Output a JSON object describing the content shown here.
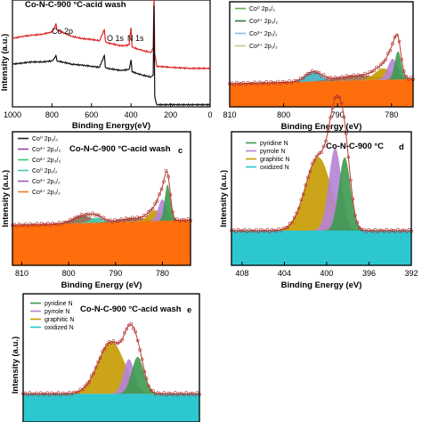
{
  "chart_data": [
    {
      "id": "a",
      "type": "line",
      "title": "Co-N-C-900 °C-acid wash",
      "xlabel": "Binding Energy(eV)",
      "ylabel": "Intensity (a.u.)",
      "xlim": [
        1000,
        0
      ],
      "xticks": [
        "1000",
        "800",
        "600",
        "400",
        "200",
        "0"
      ],
      "colors": {
        "top": "#dd2222",
        "bottom": "#111111"
      },
      "annotations": [
        "Co 2p",
        "O 1s",
        "N 1s"
      ],
      "series": [
        {
          "color": "red",
          "x": [
            1000,
            950,
            900,
            850,
            800,
            790,
            780,
            775,
            700,
            650,
            600,
            560,
            535,
            530,
            520,
            450,
            410,
            400,
            395,
            350,
            300,
            288,
            284,
            280,
            270,
            200,
            100,
            0
          ],
          "y": [
            0.64,
            0.66,
            0.67,
            0.68,
            0.7,
            0.73,
            0.78,
            0.72,
            0.66,
            0.64,
            0.63,
            0.62,
            0.72,
            0.62,
            0.6,
            0.57,
            0.58,
            0.74,
            0.56,
            0.53,
            0.51,
            0.55,
            1.05,
            0.5,
            0.38,
            0.37,
            0.36,
            0.36
          ]
        },
        {
          "color": "black",
          "x": [
            1000,
            950,
            900,
            850,
            800,
            790,
            780,
            775,
            700,
            650,
            600,
            560,
            535,
            530,
            520,
            450,
            410,
            400,
            395,
            350,
            300,
            288,
            284,
            280,
            270,
            200,
            100,
            0
          ],
          "y": [
            0.4,
            0.41,
            0.42,
            0.42,
            0.43,
            0.45,
            0.48,
            0.43,
            0.4,
            0.39,
            0.38,
            0.37,
            0.48,
            0.37,
            0.36,
            0.34,
            0.35,
            0.44,
            0.33,
            0.3,
            0.28,
            0.3,
            0.95,
            0.1,
            0.02,
            0.02,
            0.02,
            0.02
          ]
        }
      ]
    },
    {
      "id": "b",
      "type": "area",
      "xlabel": "Binding Energy (eV)",
      "ylabel": "",
      "xlim": [
        810,
        776
      ],
      "xticks": [
        "810",
        "800",
        "790",
        "780"
      ],
      "legend": [
        {
          "label": "Co⁰ 2p₃/₂",
          "color": "#6aa84f"
        },
        {
          "label": "Co²⁺ 2p₃/₂",
          "color": "#2a7a3a"
        },
        {
          "label": "Co³⁺ 2p₁/₂",
          "color": "#8fbcd4"
        },
        {
          "label": "Co²⁺ 2p₁/₂",
          "color": "#d4c27a"
        }
      ],
      "background_color": "#ff6600",
      "peaks": [
        {
          "center": 794.5,
          "height": 0.1,
          "width": 1.5,
          "color": "#3fb0c0"
        },
        {
          "center": 786,
          "height": 0.05,
          "width": 4,
          "color": "#a07050"
        },
        {
          "center": 781.5,
          "height": 0.12,
          "width": 1.6,
          "color": "#c79a00"
        },
        {
          "center": 779.8,
          "height": 0.22,
          "width": 0.9,
          "color": "#b583d6"
        },
        {
          "center": 778.8,
          "height": 0.3,
          "width": 0.6,
          "color": "#3c9a4f"
        }
      ]
    },
    {
      "id": "c",
      "type": "area",
      "title": "Co-N-C-900 °C-acid wash",
      "panel_letter": "c",
      "xlabel": "Binding Energy (eV)",
      "ylabel": "Intensity (a.u.)",
      "xlim": [
        812,
        774
      ],
      "xticks": [
        "810",
        "800",
        "790",
        "780"
      ],
      "legend": [
        {
          "label": "Co⁰ 2p₃/₂",
          "color": "#222222"
        },
        {
          "label": "Co³⁺ 2p₃/₂",
          "color": "#8e44ad"
        },
        {
          "label": "Co²⁺ 2p₃/₂",
          "color": "#2ecc71"
        },
        {
          "label": "Co⁰ 2p₁/₂",
          "color": "#48c9b0"
        },
        {
          "label": "Co³⁺ 2p₁/₂",
          "color": "#9b59b6"
        },
        {
          "label": "Co²⁺ 2p₁/₂",
          "color": "#e67e22"
        }
      ],
      "background_color": "#ff6600",
      "peaks": [
        {
          "center": 797,
          "height": 0.07,
          "width": 2,
          "color": "#8a6a50"
        },
        {
          "center": 794,
          "height": 0.05,
          "width": 1.4,
          "color": "#48c9b0"
        },
        {
          "center": 786,
          "height": 0.03,
          "width": 3,
          "color": "#a07050"
        },
        {
          "center": 781.6,
          "height": 0.1,
          "width": 1.4,
          "color": "#c79a00"
        },
        {
          "center": 780.0,
          "height": 0.2,
          "width": 0.9,
          "color": "#b583d6"
        },
        {
          "center": 778.9,
          "height": 0.34,
          "width": 0.6,
          "color": "#3c9a4f"
        }
      ]
    },
    {
      "id": "d",
      "type": "area",
      "title": "Co-N-C-900 °C",
      "panel_letter": "d",
      "xlabel": "Binding Energy (eV)",
      "ylabel": "Intensity (a.u.)",
      "xlim": [
        409,
        392
      ],
      "xticks": [
        "408",
        "404",
        "400",
        "396",
        "392"
      ],
      "legend": [
        {
          "label": "pyridine N",
          "color": "#3c9a4f"
        },
        {
          "label": "pyrrole N",
          "color": "#b583d6"
        },
        {
          "label": "graphitic N",
          "color": "#c79a00"
        },
        {
          "label": "oxidized N",
          "color": "#22c4cc"
        }
      ],
      "background_color": "#22c4cc",
      "peaks": [
        {
          "center": 400.8,
          "height": 0.55,
          "width": 1.2,
          "color": "#c79a00"
        },
        {
          "center": 399.2,
          "height": 0.62,
          "width": 0.6,
          "color": "#b583d6"
        },
        {
          "center": 398.3,
          "height": 0.55,
          "width": 0.55,
          "color": "#3c9a4f"
        }
      ]
    },
    {
      "id": "e",
      "type": "area",
      "title": "Co-N-C-900 °C-acid wash",
      "panel_letter": "e",
      "xlabel": "",
      "ylabel": "Intensity (a.u.)",
      "xlim": [
        409,
        393
      ],
      "xticks": [],
      "legend": [
        {
          "label": "pyridine N",
          "color": "#3c9a4f"
        },
        {
          "label": "pyrrole N",
          "color": "#b583d6"
        },
        {
          "label": "graphitic N",
          "color": "#c79a00"
        },
        {
          "label": "oxidized N",
          "color": "#22c4cc"
        }
      ],
      "background_color": "#22c4cc",
      "peaks": [
        {
          "center": 401,
          "height": 0.45,
          "width": 1.2,
          "color": "#c79a00"
        },
        {
          "center": 399.4,
          "height": 0.3,
          "width": 0.5,
          "color": "#b583d6"
        },
        {
          "center": 398.6,
          "height": 0.32,
          "width": 0.55,
          "color": "#3c9a4f"
        }
      ]
    }
  ]
}
